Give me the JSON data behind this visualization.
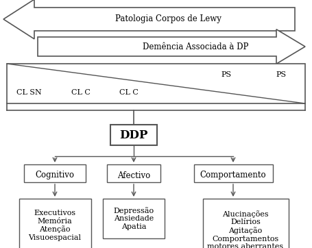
{
  "bg_color": "#ffffff",
  "arrow1_label": "Patologia Corpos de Lewy",
  "arrow2_label": "Demência Associada à DP",
  "box_labels": [
    "CL SN",
    "CL C",
    "CL C",
    "PS",
    "PS"
  ],
  "ddp_label": "DDP",
  "node1": "Cognitivo",
  "node2": "Afectivo",
  "node3": "Comportamento",
  "leaf1": "Executivos\nMemória\nAtenção\nVisuoespacial",
  "leaf2": "Depressão\nAnsiedade\nApatia",
  "leaf3": "Alucinações\nDelírios\nAgitação\nComportamentos\nmotores aberrantes",
  "font_size_arrow": 8.5,
  "font_size_box": 8,
  "font_size_ddp": 12,
  "font_size_node": 8.5,
  "font_size_leaf": 8
}
